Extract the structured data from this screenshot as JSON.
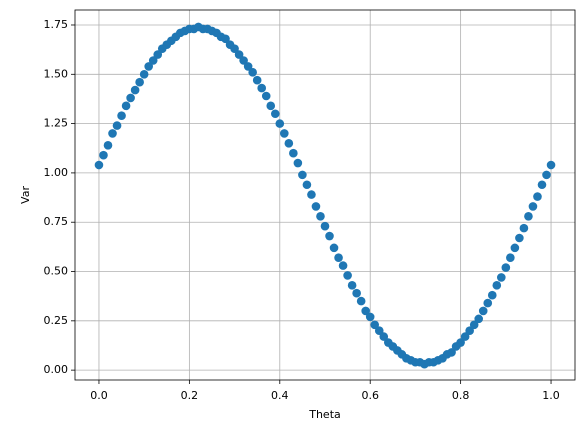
{
  "chart_data": {
    "type": "scatter",
    "xlabel": "Theta",
    "ylabel": "Var",
    "color": "#1f77b4",
    "grid": true,
    "x": [
      0,
      0.01,
      0.02,
      0.03,
      0.04,
      0.05,
      0.06,
      0.07,
      0.08,
      0.09,
      0.1,
      0.11,
      0.12,
      0.13,
      0.14,
      0.15,
      0.16,
      0.17,
      0.18,
      0.19,
      0.2,
      0.21,
      0.22,
      0.23,
      0.24,
      0.25,
      0.26,
      0.27,
      0.28,
      0.29,
      0.3,
      0.31,
      0.32,
      0.33,
      0.34,
      0.35,
      0.36,
      0.37,
      0.38,
      0.39,
      0.4,
      0.41,
      0.42,
      0.43,
      0.44,
      0.45,
      0.46,
      0.47,
      0.48,
      0.49,
      0.5,
      0.51,
      0.52,
      0.53,
      0.54,
      0.55,
      0.56,
      0.57,
      0.58,
      0.59,
      0.6,
      0.61,
      0.62,
      0.63,
      0.64,
      0.65,
      0.66,
      0.67,
      0.68,
      0.69,
      0.7,
      0.71,
      0.72,
      0.73,
      0.74,
      0.75,
      0.76,
      0.77,
      0.78,
      0.79,
      0.8,
      0.81,
      0.82,
      0.83,
      0.84,
      0.85,
      0.86,
      0.87,
      0.88,
      0.89,
      0.9,
      0.91,
      0.92,
      0.93,
      0.94,
      0.95,
      0.96,
      0.97,
      0.98,
      0.99,
      1
    ],
    "values": [
      1.04,
      1.09,
      1.14,
      1.2,
      1.24,
      1.29,
      1.34,
      1.38,
      1.42,
      1.46,
      1.5,
      1.54,
      1.57,
      1.6,
      1.63,
      1.65,
      1.67,
      1.69,
      1.71,
      1.72,
      1.73,
      1.73,
      1.74,
      1.73,
      1.73,
      1.72,
      1.71,
      1.69,
      1.68,
      1.65,
      1.63,
      1.6,
      1.57,
      1.54,
      1.51,
      1.47,
      1.43,
      1.39,
      1.34,
      1.3,
      1.25,
      1.2,
      1.15,
      1.1,
      1.05,
      0.99,
      0.94,
      0.89,
      0.83,
      0.78,
      0.73,
      0.68,
      0.62,
      0.57,
      0.53,
      0.48,
      0.43,
      0.39,
      0.35,
      0.3,
      0.27,
      0.23,
      0.2,
      0.17,
      0.14,
      0.12,
      0.1,
      0.08,
      0.06,
      0.05,
      0.04,
      0.04,
      0.03,
      0.04,
      0.04,
      0.05,
      0.06,
      0.08,
      0.09,
      0.12,
      0.14,
      0.17,
      0.2,
      0.23,
      0.26,
      0.3,
      0.34,
      0.38,
      0.43,
      0.47,
      0.52,
      0.57,
      0.62,
      0.67,
      0.72,
      0.78,
      0.83,
      0.88,
      0.94,
      0.99,
      1.04
    ],
    "xlim": [
      -0.053,
      1.053
    ],
    "ylim": [
      -0.05,
      1.826
    ],
    "xticks": [
      {
        "value": 0,
        "label": "0.0"
      },
      {
        "value": 0.2,
        "label": "0.2"
      },
      {
        "value": 0.4,
        "label": "0.4"
      },
      {
        "value": 0.6,
        "label": "0.6"
      },
      {
        "value": 0.8,
        "label": "0.8"
      },
      {
        "value": 1,
        "label": "1.0"
      }
    ],
    "yticks": [
      {
        "value": 0,
        "label": "0.00"
      },
      {
        "value": 0.25,
        "label": "0.25"
      },
      {
        "value": 0.5,
        "label": "0.50"
      },
      {
        "value": 0.75,
        "label": "0.75"
      },
      {
        "value": 1,
        "label": "1.00"
      },
      {
        "value": 1.25,
        "label": "1.25"
      },
      {
        "value": 1.5,
        "label": "1.50"
      },
      {
        "value": 1.75,
        "label": "1.75"
      }
    ]
  }
}
